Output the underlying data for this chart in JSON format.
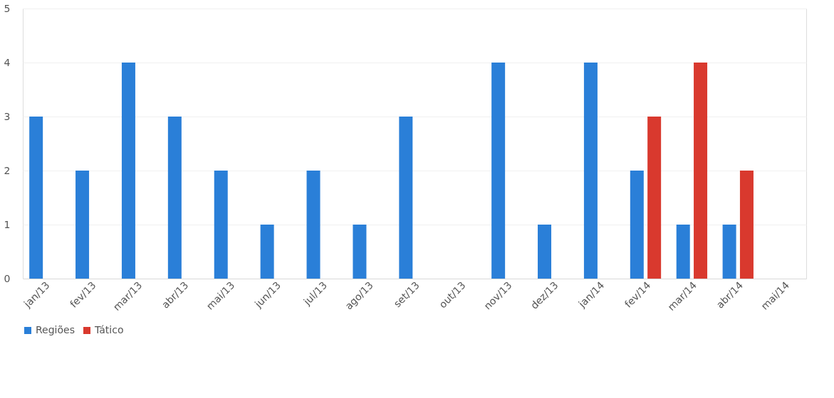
{
  "chart_data": {
    "type": "bar",
    "categories": [
      "jan/13",
      "fev/13",
      "mar/13",
      "abr/13",
      "mai/13",
      "jun/13",
      "jul/13",
      "ago/13",
      "set/13",
      "out/13",
      "nov/13",
      "dez/13",
      "jan/14",
      "fev/14",
      "mar/14",
      "abr/14",
      "mai/14"
    ],
    "series": [
      {
        "name": "Regiões",
        "color": "#2a7fd8",
        "values": [
          3,
          2,
          4,
          3,
          2,
          1,
          2,
          1,
          3,
          null,
          4,
          1,
          4,
          2,
          1,
          1,
          null
        ]
      },
      {
        "name": "Tático",
        "color": "#d9392e",
        "values": [
          null,
          null,
          null,
          null,
          null,
          null,
          null,
          null,
          null,
          null,
          null,
          null,
          null,
          3,
          4,
          2,
          null
        ]
      }
    ],
    "ylim": [
      0,
      5
    ],
    "yticks": [
      0,
      1,
      2,
      3,
      4,
      5
    ],
    "grid": "y",
    "legend": "bottom"
  }
}
